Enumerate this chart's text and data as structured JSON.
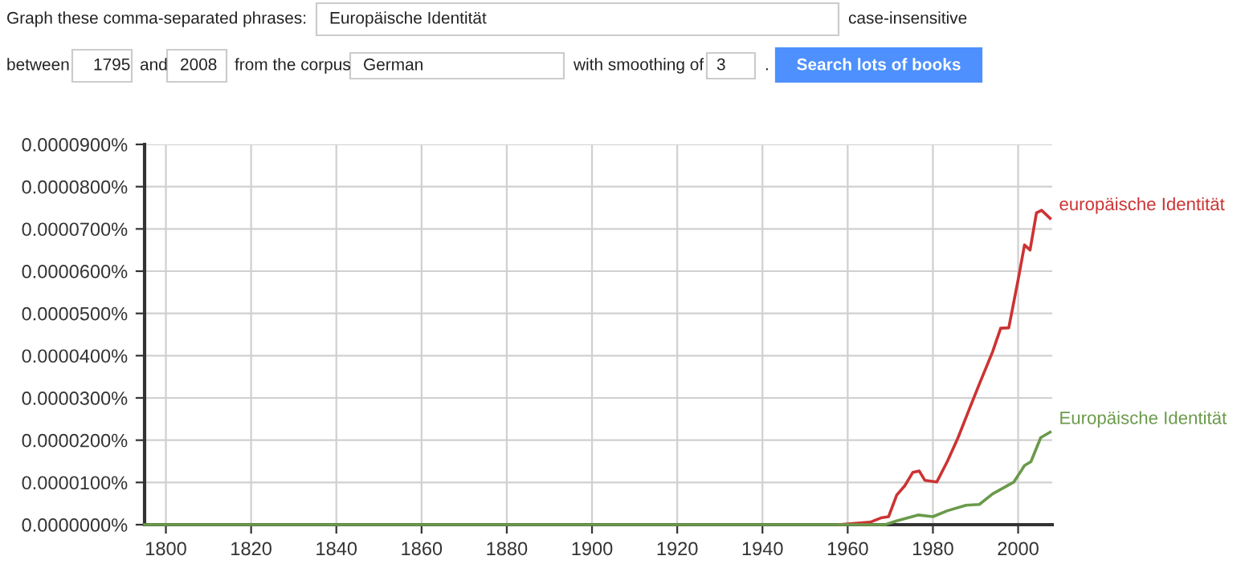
{
  "chart_data": {
    "type": "line",
    "xlim": [
      1795,
      2008
    ],
    "xticks": [
      1800,
      1820,
      1840,
      1860,
      1880,
      1900,
      1920,
      1940,
      1960,
      1980,
      2000
    ],
    "ylim": [
      0,
      9e-05
    ],
    "yticks": [
      {
        "value": 0,
        "label": "0.0000000%"
      },
      {
        "value": 1e-05,
        "label": "0.0000100%"
      },
      {
        "value": 2e-05,
        "label": "0.0000200%"
      },
      {
        "value": 3e-05,
        "label": "0.0000300%"
      },
      {
        "value": 4e-05,
        "label": "0.0000400%"
      },
      {
        "value": 5e-05,
        "label": "0.0000500%"
      },
      {
        "value": 6e-05,
        "label": "0.0000600%"
      },
      {
        "value": 7e-05,
        "label": "0.0000700%"
      },
      {
        "value": 8e-05,
        "label": "0.0000800%"
      },
      {
        "value": 9e-05,
        "label": "0.0000900%"
      }
    ],
    "grid": true,
    "legend": false,
    "marker": "none",
    "line_style": "solid",
    "series": [
      {
        "name": "europäische Identität",
        "color": "#cc3333",
        "x": [
          1957.8,
          1965.3,
          1967.8,
          1969.6,
          1971.5,
          1973.4,
          1975.3,
          1976.8,
          1978.1,
          1980.9,
          1983.4,
          1985.9,
          1988.4,
          1990.9,
          1994,
          1995.9,
          1997.8,
          2000,
          2001.5,
          2002.8,
          2004.3,
          2005.5,
          2007.5
        ],
        "values": [
          0,
          6e-07,
          1.6e-06,
          1.9e-06,
          7e-06,
          9.2e-06,
          1.24e-05,
          1.27e-05,
          1.05e-05,
          1.01e-05,
          1.5e-05,
          2.06e-05,
          2.7e-05,
          3.33e-05,
          4.09e-05,
          4.65e-05,
          4.66e-05,
          5.8e-05,
          6.62e-05,
          6.5e-05,
          7.38e-05,
          7.44e-05,
          7.25e-05
        ]
      },
      {
        "name": "Europäische Identität",
        "color": "#6a9a4a",
        "x": [
          1795,
          1968.8,
          1971.5,
          1976.5,
          1980,
          1983.4,
          1987.8,
          1990.9,
          1994,
          1999,
          2001.5,
          2003,
          2005.3,
          2007.5
        ],
        "values": [
          0,
          0,
          9e-07,
          2.3e-06,
          1.9e-06,
          3.3e-06,
          4.6e-06,
          4.8e-06,
          7.3e-06,
          1.01e-05,
          1.4e-05,
          1.49e-05,
          2.06e-05,
          2.19e-05
        ]
      }
    ],
    "annotations": [
      "Graph these comma-separated phrases:",
      "Europäische Identität",
      "case-insensitive",
      "between",
      "1795",
      "and",
      "2008",
      "from the corpus",
      "German",
      "with smoothing of",
      "3",
      ".",
      "Search lots of books"
    ]
  }
}
